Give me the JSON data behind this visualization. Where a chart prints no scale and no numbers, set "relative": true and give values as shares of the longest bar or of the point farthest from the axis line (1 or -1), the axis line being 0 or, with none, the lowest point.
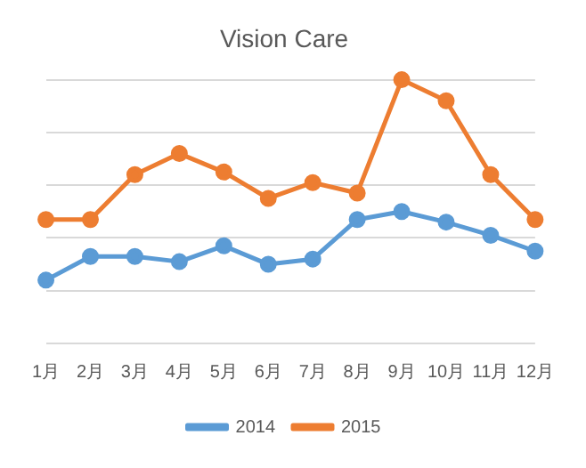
{
  "chart_data": {
    "type": "line",
    "title": "Vision Care",
    "relative": true,
    "categories": [
      "1月",
      "2月",
      "3月",
      "4月",
      "5月",
      "6月",
      "7月",
      "8月",
      "9月",
      "10月",
      "11月",
      "12月"
    ],
    "series": [
      {
        "name": "2014",
        "color": "#5b9bd5",
        "values": [
          0.24,
          0.33,
          0.33,
          0.31,
          0.37,
          0.3,
          0.32,
          0.47,
          0.5,
          0.46,
          0.41,
          0.35
        ]
      },
      {
        "name": "2015",
        "color": "#ed7d31",
        "values": [
          0.47,
          0.47,
          0.64,
          0.72,
          0.65,
          0.55,
          0.61,
          0.57,
          1,
          0.92,
          0.64,
          0.47
        ]
      }
    ],
    "grid": "y",
    "legend": "bottom",
    "marker": "circle",
    "line_style": "solid"
  }
}
